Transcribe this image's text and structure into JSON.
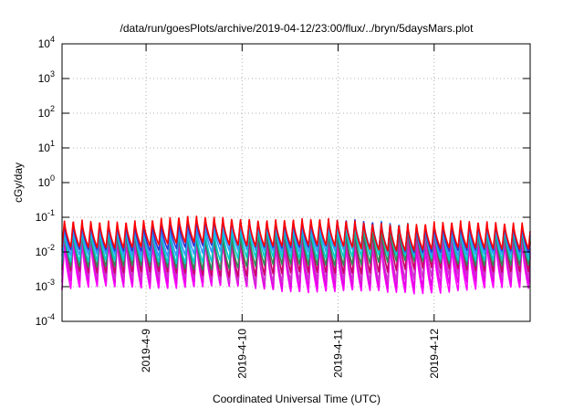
{
  "chart_data": {
    "type": "line",
    "title": "/data/run/goesPlots/archive/2019-04-12/23:00/flux/../bryn/5daysMars.plot",
    "xlabel": "Coordinated Universal Time (UTC)",
    "ylabel": "cGy/day",
    "yscale": "log",
    "ylim": [
      0.0001,
      10000
    ],
    "xlim": [
      "2019-04-08 03:00",
      "2019-04-13 00:00"
    ],
    "x_ticks": [
      "2019-4-9",
      "2019-4-10",
      "2019-4-11",
      "2019-4-12"
    ],
    "y_ticks": [
      {
        "base": "10",
        "exp": "-4"
      },
      {
        "base": "10",
        "exp": "-3"
      },
      {
        "base": "10",
        "exp": "-2"
      },
      {
        "base": "10",
        "exp": "-1"
      },
      {
        "base": "10",
        "exp": "0"
      },
      {
        "base": "10",
        "exp": "1"
      },
      {
        "base": "10",
        "exp": "2"
      },
      {
        "base": "10",
        "exp": "3"
      },
      {
        "base": "10",
        "exp": "4"
      }
    ],
    "grid": true,
    "legend": "none",
    "oscillation_period_hours": 2.2,
    "series": [
      {
        "color": "#ff00ff",
        "peak": 0.022,
        "trough": 0.0008
      },
      {
        "color": "#e600e6",
        "peak": 0.028,
        "trough": 0.0011
      },
      {
        "color": "#cc33cc",
        "peak": 0.035,
        "trough": 0.0016
      },
      {
        "color": "#cc0066",
        "peak": 0.05,
        "trough": 0.0025
      },
      {
        "color": "#2e8b57",
        "peak": 0.045,
        "trough": 0.004
      },
      {
        "color": "#00cccc",
        "peak": 0.055,
        "trough": 0.006
      },
      {
        "color": "#3399ff",
        "peak": 0.065,
        "trough": 0.009
      },
      {
        "color": "#3333cc",
        "peak": 0.075,
        "trough": 0.012
      },
      {
        "color": "#ff0000",
        "peak": 0.085,
        "trough": 0.014
      }
    ]
  }
}
